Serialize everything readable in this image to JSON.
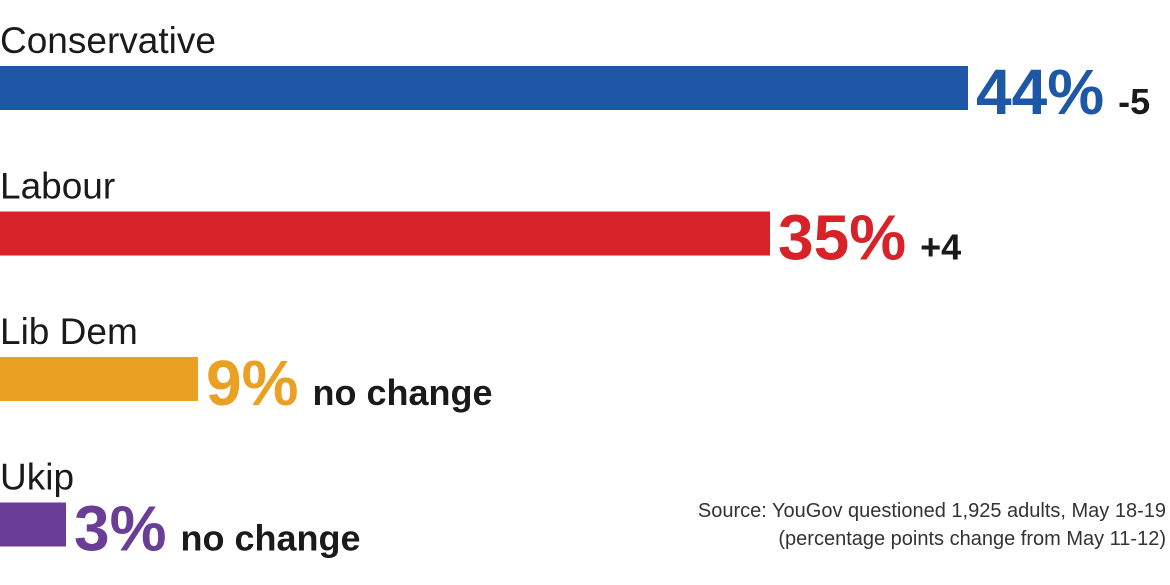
{
  "chart_data": {
    "type": "bar",
    "orientation": "horizontal",
    "unit": "%",
    "categories": [
      "Conservative",
      "Labour",
      "Lib Dem",
      "Ukip"
    ],
    "values": [
      44,
      35,
      9,
      3
    ],
    "value_labels": [
      "44%",
      "35%",
      "9%",
      "3%"
    ],
    "changes": [
      "-5",
      "+4",
      "no change",
      "no change"
    ],
    "colors": [
      "#1d57a6",
      "#d62228",
      "#eaa123",
      "#6a3d97"
    ],
    "grid": false
  },
  "source": {
    "line1": "Source: YouGov questioned 1,925 adults, May 18-19",
    "line2": "(percentage points change from May 11-12)"
  }
}
